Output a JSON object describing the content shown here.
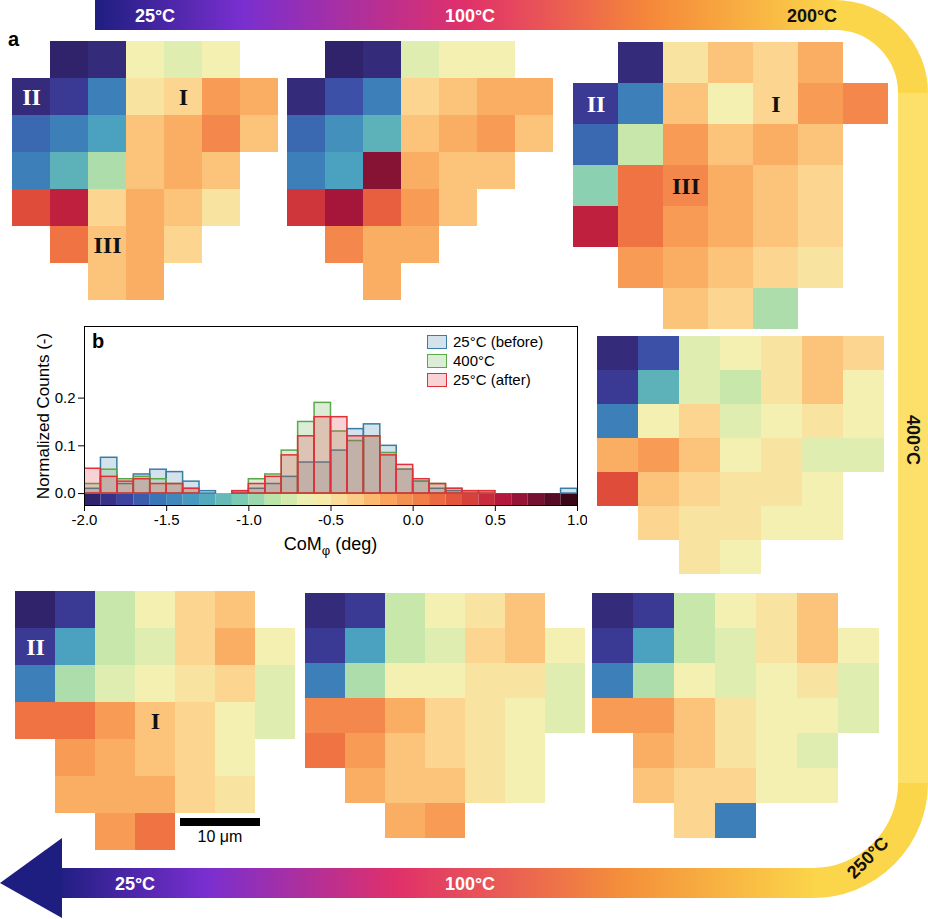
{
  "panel_labels": [
    "a",
    "b"
  ],
  "temperature_path": {
    "top": [
      "25°C",
      "100°C",
      "200°C"
    ],
    "right": "400°C",
    "bottom": [
      "25°C",
      "100°C",
      "250°C"
    ]
  },
  "maps": [
    {
      "cells": [
        [
          null,
          -1.95,
          -1.9,
          -0.6,
          -0.7,
          -0.6,
          null
        ],
        [
          -1.9,
          -1.8,
          -1.5,
          -0.5,
          -0.4,
          -0.1,
          -0.2
        ],
        [
          -1.6,
          -1.5,
          -1.3,
          -0.3,
          -0.2,
          0.0,
          -0.3
        ],
        [
          -1.5,
          -1.2,
          -0.9,
          -0.3,
          -0.2,
          -0.3,
          null
        ],
        [
          0.3,
          0.5,
          -0.4,
          -0.2,
          -0.3,
          -0.5,
          null
        ],
        [
          null,
          0.1,
          -0.3,
          -0.2,
          -0.4,
          null,
          null
        ],
        [
          null,
          null,
          -0.3,
          -0.2,
          null,
          null,
          null
        ]
      ],
      "labels": [
        {
          "text": "II",
          "row": 1,
          "col": 0,
          "color": "white"
        },
        {
          "text": "I",
          "row": 1,
          "col": 4,
          "color": "#111111"
        },
        {
          "text": "III",
          "row": 5,
          "col": 2,
          "color": "#111111"
        }
      ]
    },
    {
      "cells": [
        [
          null,
          -1.95,
          -1.9,
          -0.7,
          -0.6,
          -0.6,
          null
        ],
        [
          -1.9,
          -1.7,
          -1.5,
          -0.4,
          -0.3,
          -0.2,
          -0.2
        ],
        [
          -1.6,
          -1.4,
          -1.2,
          -0.3,
          -0.2,
          -0.1,
          -0.3
        ],
        [
          -1.5,
          -1.3,
          0.7,
          -0.2,
          -0.3,
          -0.3,
          null
        ],
        [
          0.4,
          0.6,
          0.2,
          -0.1,
          -0.3,
          null,
          null
        ],
        [
          null,
          0.0,
          -0.2,
          -0.2,
          null,
          null,
          null
        ],
        [
          null,
          null,
          -0.2,
          null,
          null,
          null,
          null
        ]
      ],
      "labels": []
    },
    {
      "cells": [
        [
          null,
          -1.9,
          -0.5,
          -0.3,
          -0.4,
          -0.2,
          null
        ],
        [
          -1.8,
          -1.5,
          -0.3,
          -0.6,
          -0.4,
          -0.1,
          0.0
        ],
        [
          -1.6,
          -0.8,
          -0.1,
          -0.3,
          -0.2,
          -0.3,
          null
        ],
        [
          -1.0,
          0.1,
          0.0,
          -0.2,
          -0.3,
          -0.4,
          null
        ],
        [
          0.5,
          0.1,
          -0.1,
          -0.2,
          -0.3,
          -0.4,
          null
        ],
        [
          null,
          -0.1,
          -0.2,
          -0.3,
          -0.4,
          -0.5,
          null
        ],
        [
          null,
          null,
          -0.3,
          -0.4,
          -0.9,
          null,
          null
        ]
      ],
      "labels": [
        {
          "text": "II",
          "row": 1,
          "col": 0,
          "color": "white"
        },
        {
          "text": "I",
          "row": 1,
          "col": 4,
          "color": "#111111"
        },
        {
          "text": "III",
          "row": 3,
          "col": 2,
          "color": "#111111"
        }
      ]
    },
    {
      "cells": [
        [
          -1.9,
          -1.7,
          -0.7,
          -0.6,
          -0.5,
          -0.3,
          -0.4
        ],
        [
          -1.8,
          -1.2,
          -0.7,
          -0.8,
          -0.5,
          -0.3,
          -0.6
        ],
        [
          -1.5,
          -0.6,
          -0.4,
          -0.7,
          -0.6,
          -0.5,
          -0.6
        ],
        [
          -0.2,
          -0.1,
          -0.3,
          -0.6,
          -0.5,
          -0.7,
          -0.7
        ],
        [
          0.3,
          -0.3,
          -0.4,
          -0.5,
          -0.5,
          -0.6,
          null
        ],
        [
          null,
          -0.4,
          -0.5,
          -0.5,
          -0.6,
          -0.6,
          null
        ],
        [
          null,
          null,
          -0.5,
          -0.6,
          null,
          null,
          null
        ]
      ],
      "labels": []
    },
    {
      "cells": [
        [
          -1.9,
          -1.8,
          -0.8,
          -0.6,
          -0.5,
          -0.3,
          null
        ],
        [
          -1.8,
          -1.3,
          -0.8,
          -0.7,
          -0.5,
          -0.3,
          -0.6
        ],
        [
          -1.5,
          -0.9,
          -0.6,
          -0.7,
          -0.6,
          -0.5,
          -0.7
        ],
        [
          -0.1,
          -0.1,
          -0.3,
          -0.5,
          -0.6,
          -0.6,
          -0.7
        ],
        [
          null,
          -0.2,
          -0.3,
          -0.5,
          -0.6,
          -0.7,
          null
        ],
        [
          null,
          -0.3,
          -0.4,
          -0.4,
          -0.6,
          -0.6,
          null
        ],
        [
          null,
          null,
          -0.4,
          -1.5,
          null,
          null,
          null
        ]
      ],
      "labels": []
    },
    {
      "cells": [
        [
          -1.9,
          -1.8,
          -0.8,
          -0.6,
          -0.5,
          -0.3,
          null
        ],
        [
          -1.8,
          -1.3,
          -0.8,
          -0.7,
          -0.4,
          -0.3,
          -0.6
        ],
        [
          -1.5,
          -0.9,
          -0.6,
          -0.6,
          -0.5,
          -0.5,
          -0.7
        ],
        [
          0.0,
          0.0,
          -0.2,
          -0.4,
          -0.5,
          -0.6,
          -0.7
        ],
        [
          0.1,
          -0.1,
          -0.3,
          -0.4,
          -0.5,
          -0.6,
          null
        ],
        [
          null,
          -0.2,
          -0.3,
          -0.3,
          -0.5,
          -0.6,
          null
        ],
        [
          null,
          null,
          -0.2,
          -0.1,
          null,
          null,
          null
        ]
      ],
      "labels": []
    },
    {
      "cells": [
        [
          -1.95,
          -1.8,
          -0.8,
          -0.6,
          -0.4,
          -0.3,
          null
        ],
        [
          -1.8,
          -1.3,
          -0.8,
          -0.7,
          -0.4,
          -0.2,
          -0.6
        ],
        [
          -1.5,
          -0.9,
          -0.7,
          -0.6,
          -0.5,
          -0.4,
          -0.7
        ],
        [
          0.1,
          0.1,
          -0.1,
          -0.3,
          -0.4,
          -0.6,
          -0.7
        ],
        [
          null,
          -0.1,
          -0.2,
          -0.3,
          -0.4,
          -0.6,
          null
        ],
        [
          null,
          -0.2,
          -0.2,
          -0.2,
          -0.4,
          -0.5,
          null
        ],
        [
          null,
          null,
          -0.1,
          0.1,
          null,
          null,
          null
        ]
      ],
      "labels": [
        {
          "text": "II",
          "row": 1,
          "col": 0,
          "color": "white"
        },
        {
          "text": "I",
          "row": 3,
          "col": 3,
          "color": "#111111"
        }
      ]
    }
  ],
  "scale_bar": {
    "label": "10 μm"
  },
  "chart_data": {
    "type": "histogram",
    "x_label": [
      "CoM",
      "φ",
      " (deg)"
    ],
    "y_label": "Normalized Counts (-)",
    "xlim": [
      -2,
      1
    ],
    "xticks": [
      {
        "value": -2,
        "label": "-2.0"
      },
      {
        "value": -1.5,
        "label": "-1.5"
      },
      {
        "value": -1,
        "label": "-1.0"
      },
      {
        "value": -0.5,
        "label": "-0.5"
      },
      {
        "value": 0,
        "label": "0.0"
      },
      {
        "value": 0.5,
        "label": "0.5"
      },
      {
        "value": 1,
        "label": "1.0"
      }
    ],
    "ylim": [
      -0.025,
      0.35
    ],
    "yticks": [
      {
        "value": 0,
        "label": "0.0"
      },
      {
        "value": 0.1,
        "label": "0.1"
      },
      {
        "value": 0.2,
        "label": "0.2"
      }
    ],
    "grid": false,
    "legend": "top-right",
    "bins": [
      -2.0,
      -1.9,
      -1.8,
      -1.7,
      -1.6,
      -1.5,
      -1.4,
      -1.3,
      -1.2,
      -1.1,
      -1.0,
      -0.9,
      -0.8,
      -0.7,
      -0.6,
      -0.5,
      -0.4,
      -0.3,
      -0.2,
      -0.1,
      0.0,
      0.1,
      0.2,
      0.3,
      0.4,
      0.5,
      0.6,
      0.7,
      0.8,
      0.9,
      1.0
    ],
    "series": [
      {
        "name": "25°C (before)",
        "color": "#3a7ca5",
        "values": [
          0.01,
          0.075,
          0.02,
          0.04,
          0.05,
          0.045,
          0.025,
          0.005,
          0,
          0.005,
          0.01,
          0.02,
          0.035,
          0.065,
          0.065,
          0.09,
          0.135,
          0.145,
          0.1,
          0.05,
          0.025,
          0.01,
          0.005,
          0,
          0,
          0,
          0,
          0,
          0,
          0.01
        ]
      },
      {
        "name": "400°C",
        "color": "#5ba84a",
        "values": [
          0.02,
          0.05,
          0.03,
          0.035,
          0.03,
          0.02,
          0.01,
          0,
          0,
          0,
          0.03,
          0.04,
          0.09,
          0.15,
          0.19,
          0.13,
          0.11,
          0.12,
          0.085,
          0.05,
          0.025,
          0.02,
          0.01,
          0.005,
          0.005,
          0,
          0,
          0,
          0,
          0
        ]
      },
      {
        "name": "25°C (after)",
        "color": "#e0303a",
        "values": [
          0.052,
          0.035,
          0.025,
          0.03,
          0.02,
          0.02,
          0.01,
          0,
          0,
          0.005,
          0.02,
          0.035,
          0.08,
          0.12,
          0.16,
          0.16,
          0.12,
          0.12,
          0.08,
          0.06,
          0.03,
          0.02,
          0.01,
          0.005,
          0.005,
          0,
          0,
          0,
          0,
          0
        ]
      }
    ],
    "colorbar": {
      "range": [
        -2,
        1
      ],
      "colors": [
        "#2d1b5e",
        "#3c3f9e",
        "#3a78b8",
        "#4aa0c0",
        "#72c6b4",
        "#bde4a8",
        "#f3f2b4",
        "#fdd48e",
        "#f9a55a",
        "#f17844",
        "#de4a3a",
        "#b8183e",
        "#701030",
        "#2a0412"
      ]
    }
  }
}
